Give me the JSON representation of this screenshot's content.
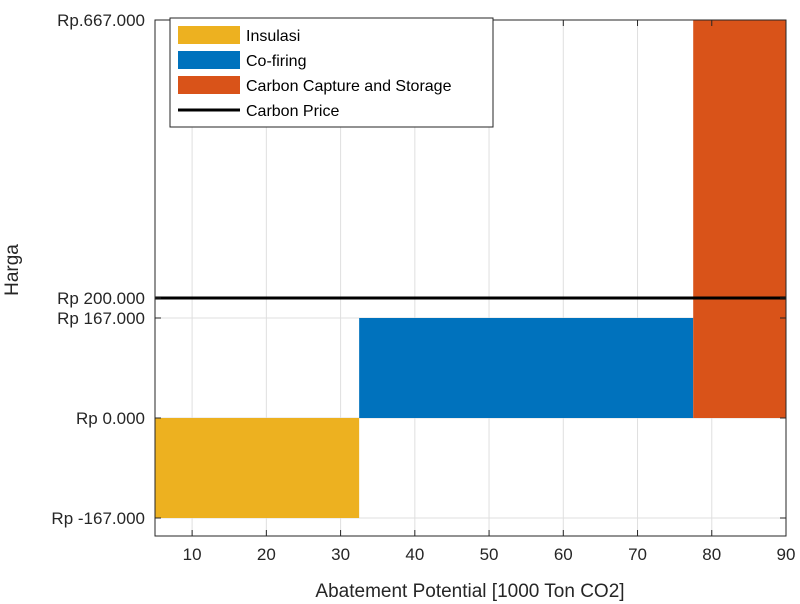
{
  "chart_data": {
    "type": "bar",
    "subtype": "marginal-abatement-cost-curve",
    "xlabel": "Abatement Potential [1000 Ton CO2]",
    "ylabel": "Harga",
    "xlim": [
      5,
      90
    ],
    "ylim": [
      -167000,
      667000
    ],
    "x_ticks": [
      10,
      20,
      30,
      40,
      50,
      60,
      70,
      80,
      90
    ],
    "y_ticks": [
      {
        "value": -167000,
        "label": "Rp -167.000"
      },
      {
        "value": 0,
        "label": "Rp 0.000"
      },
      {
        "value": 167000,
        "label": "Rp 167.000"
      },
      {
        "value": 200000,
        "label": "Rp 200.000"
      },
      {
        "value": 667000,
        "label": "Rp.667.000"
      }
    ],
    "grid": true,
    "legend_position": "top-left",
    "series": [
      {
        "name": "Insulasi",
        "x_start": 5,
        "x_end": 32.5,
        "value": -167000,
        "color": "#EDB120"
      },
      {
        "name": "Co-firing",
        "x_start": 32.5,
        "x_end": 77.5,
        "value": 167000,
        "color": "#0072BD"
      },
      {
        "name": "Carbon Capture and Storage",
        "x_start": 77.5,
        "x_end": 90,
        "value": 667000,
        "color": "#D95319"
      }
    ],
    "reference_lines": [
      {
        "name": "Carbon Price",
        "value": 200000,
        "color": "#000000"
      }
    ]
  }
}
